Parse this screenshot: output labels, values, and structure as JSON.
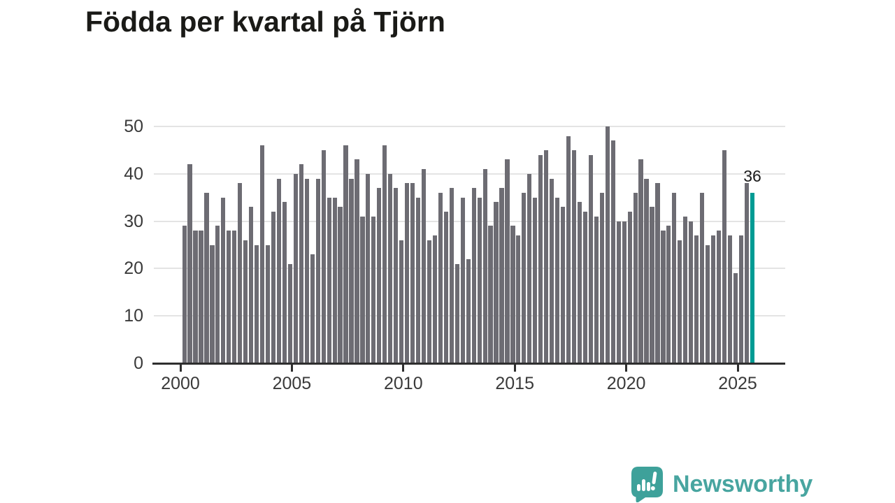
{
  "title": "Födda per kvartal på Tjörn",
  "annotation": {
    "last_value_label": "36"
  },
  "footer": {
    "brand": "Newsworthy",
    "logo_icon": "speech-bubble-bar-chart-icon"
  },
  "colors": {
    "bar": "#6d6c73",
    "highlight_bar": "#009b94",
    "gridline": "#e4e4e4",
    "axis": "#2e2e2e",
    "tick_text": "#3a3a3a",
    "title_text": "#1a1a17",
    "logo_teal": "#48a5a0",
    "background": "#ffffff"
  },
  "chart_data": {
    "type": "bar",
    "title": "Födda per kvartal på Tjörn",
    "xlabel": "",
    "ylabel": "",
    "x_start": "2000Q1",
    "x_end": "2025Q3",
    "frequency": "quarterly",
    "x_tick_labels": [
      "2000",
      "2005",
      "2010",
      "2015",
      "2020",
      "2025"
    ],
    "y_tick_labels": [
      0,
      10,
      20,
      30,
      40,
      50
    ],
    "ylim": [
      0,
      50
    ],
    "grid": "horizontal",
    "legend": "none",
    "highlight_last": true,
    "values": [
      29,
      42,
      28,
      28,
      36,
      25,
      29,
      35,
      28,
      28,
      38,
      26,
      33,
      25,
      46,
      25,
      32,
      39,
      34,
      21,
      40,
      42,
      39,
      23,
      39,
      45,
      35,
      35,
      33,
      46,
      39,
      43,
      31,
      40,
      31,
      37,
      46,
      40,
      37,
      26,
      38,
      38,
      35,
      41,
      26,
      27,
      36,
      32,
      37,
      21,
      35,
      22,
      37,
      35,
      41,
      29,
      34,
      37,
      43,
      29,
      27,
      36,
      40,
      35,
      44,
      45,
      39,
      35,
      33,
      48,
      45,
      34,
      32,
      44,
      31,
      36,
      50,
      47,
      30,
      30,
      32,
      36,
      43,
      39,
      33,
      38,
      28,
      29,
      36,
      26,
      31,
      30,
      27,
      36,
      25,
      27,
      28,
      45,
      27,
      19,
      27,
      38,
      36
    ]
  }
}
